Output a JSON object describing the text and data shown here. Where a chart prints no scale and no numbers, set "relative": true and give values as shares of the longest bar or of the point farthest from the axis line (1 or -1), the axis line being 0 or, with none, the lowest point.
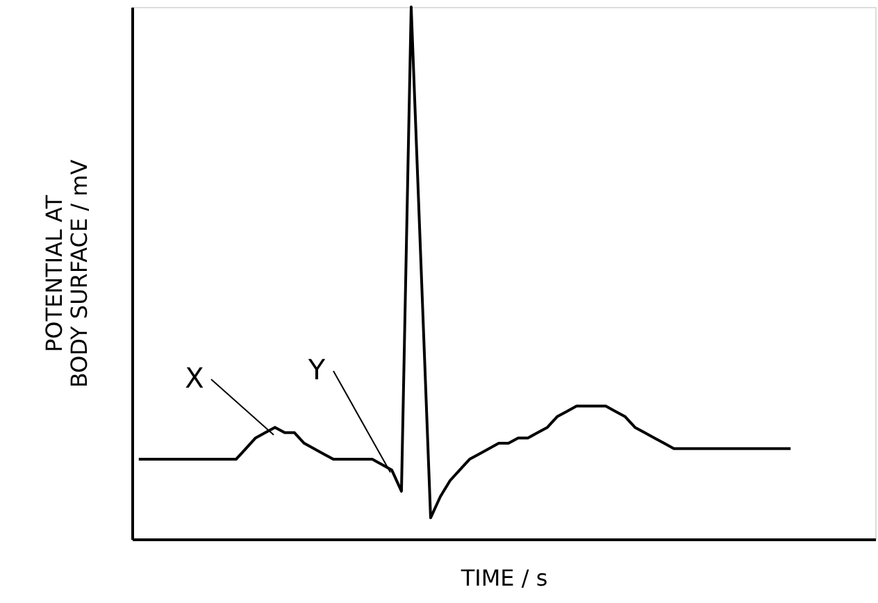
{
  "chart_data": {
    "type": "line",
    "relative": true,
    "xlabel": "TIME / s",
    "ylabel": "POTENTIAL AT\nBODY SURFACE / mV",
    "line_style": "solid",
    "categories": [
      null,
      null,
      null,
      null,
      null,
      null,
      null,
      null,
      null,
      null,
      null,
      null,
      null,
      null,
      null,
      null,
      null,
      null,
      null,
      null,
      null,
      null,
      null,
      null,
      null,
      null,
      null,
      null,
      null,
      null,
      null,
      null,
      null,
      null,
      null,
      null,
      null,
      null,
      null,
      null,
      null,
      null,
      null,
      null,
      null,
      null,
      null,
      null,
      null,
      null,
      null,
      null,
      null,
      null,
      null,
      null,
      null,
      null,
      null,
      null,
      null,
      null,
      null,
      null,
      null,
      null,
      null,
      null,
      null,
      null,
      null,
      null,
      null,
      null,
      null,
      null
    ],
    "series": [
      {
        "color": "#000000",
        "values": [
          0.15,
          0.15,
          0.15,
          0.15,
          0.15,
          0.15,
          0.15,
          0.15,
          0.15,
          0.15,
          0.15,
          0.17,
          0.19,
          0.2,
          0.21,
          0.2,
          0.2,
          0.18,
          0.17,
          0.16,
          0.15,
          0.15,
          0.15,
          0.15,
          0.15,
          0.14,
          0.13,
          0.09,
          1,
          0.52,
          0.04,
          0.08,
          0.11,
          0.13,
          0.15,
          0.16,
          0.17,
          0.18,
          0.18,
          0.19,
          0.19,
          0.2,
          0.21,
          0.23,
          0.24,
          0.25,
          0.25,
          0.25,
          0.25,
          0.24,
          0.23,
          0.21,
          0.2,
          0.19,
          0.18,
          0.17,
          0.17,
          0.17,
          0.17,
          0.17,
          0.17,
          0.17,
          0.17,
          0.17,
          0.17,
          0.17,
          0.17,
          0.17,
          null,
          null,
          null,
          null,
          null,
          null,
          null,
          null
        ]
      }
    ],
    "annotations": [
      "X",
      "Y"
    ]
  }
}
